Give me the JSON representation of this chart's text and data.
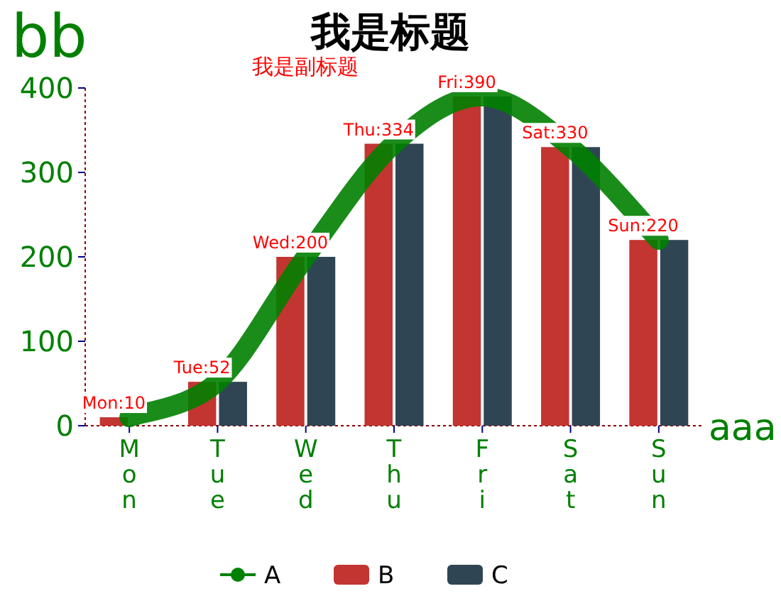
{
  "chart_data": {
    "type": "bar",
    "title": "我是标题",
    "subtitle": "我是副标题",
    "ylabel": "bb",
    "xlabel": "aaa",
    "categories": [
      "Mon",
      "Tue",
      "Wed",
      "Thu",
      "Fri",
      "Sat",
      "Sun"
    ],
    "ylim": [
      0,
      400
    ],
    "yticks": [
      0,
      100,
      200,
      300,
      400
    ],
    "legend": "bottom",
    "series": [
      {
        "name": "A",
        "type": "line",
        "color": "#008000",
        "values": [
          10,
          52,
          200,
          334,
          390,
          330,
          220
        ]
      },
      {
        "name": "B",
        "color": "#c23531",
        "values": [
          10,
          52,
          200,
          334,
          390,
          330,
          220
        ],
        "value_labels": [
          "Mon:10",
          "Tue:52",
          "Wed:200",
          "Thu:334",
          "Fri:390",
          "Sat:330",
          "Sun:220"
        ]
      },
      {
        "name": "C",
        "color": "#2f4554",
        "values": [
          null,
          52,
          200,
          334,
          390,
          330,
          220
        ]
      }
    ]
  }
}
